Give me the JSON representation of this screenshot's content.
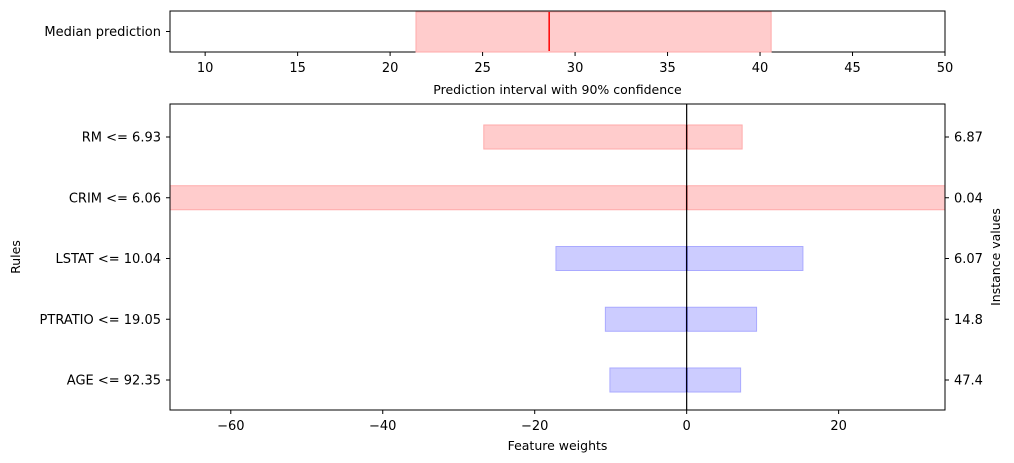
{
  "chart_data": [
    {
      "type": "bar",
      "title": "",
      "xlabel": "Prediction interval with 90% confidence",
      "ylabel": "",
      "xlim": [
        8.1,
        50
      ],
      "xticks": [
        10,
        15,
        20,
        25,
        30,
        35,
        40,
        45,
        50
      ],
      "xtick_labels": [
        "10",
        "15",
        "20",
        "25",
        "30",
        "35",
        "40",
        "45",
        "50"
      ],
      "categories": [
        "Median prediction"
      ],
      "interval": {
        "low": 21.4,
        "high": 40.6
      },
      "median": 28.6,
      "colors": {
        "interval_fill": "#ffcccc",
        "interval_edge": "#ffaaaa",
        "median_line": "#ff0000"
      }
    },
    {
      "type": "bar",
      "title": "",
      "xlabel": "Feature weights",
      "ylabel": "Rules",
      "y2label": "Instance values",
      "xlim": [
        -68,
        34
      ],
      "xticks": [
        -60,
        -40,
        -20,
        0,
        20
      ],
      "xtick_labels": [
        "−60",
        "−40",
        "−20",
        "0",
        "20"
      ],
      "grid": false,
      "categories": [
        "RM <= 6.93",
        "CRIM <= 6.06",
        "LSTAT <= 10.04",
        "PTRATIO <= 19.05",
        "AGE <= 92.35"
      ],
      "instance_values": [
        "6.87",
        "0.04",
        "6.07",
        "14.8",
        "47.4"
      ],
      "intervals": [
        {
          "low": -26.7,
          "high": 7.3,
          "weight": 0.0,
          "sign": "positive"
        },
        {
          "low": -68,
          "high": 34,
          "weight": 0.0,
          "sign": "positive"
        },
        {
          "low": -17.2,
          "high": 15.3,
          "weight": 0.0,
          "sign": "negative"
        },
        {
          "low": -10.7,
          "high": 9.2,
          "weight": 0.0,
          "sign": "negative"
        },
        {
          "low": -10.1,
          "high": 7.1,
          "weight": 0.0,
          "sign": "negative"
        }
      ],
      "colors": {
        "positive_fill": "#ffcccc",
        "positive_edge": "#ffaaaa",
        "positive_line": "#ff0000",
        "negative_fill": "#ccccff",
        "negative_edge": "#aaaaff",
        "negative_line": "#0000ff",
        "zero_line": "#000000"
      }
    }
  ]
}
